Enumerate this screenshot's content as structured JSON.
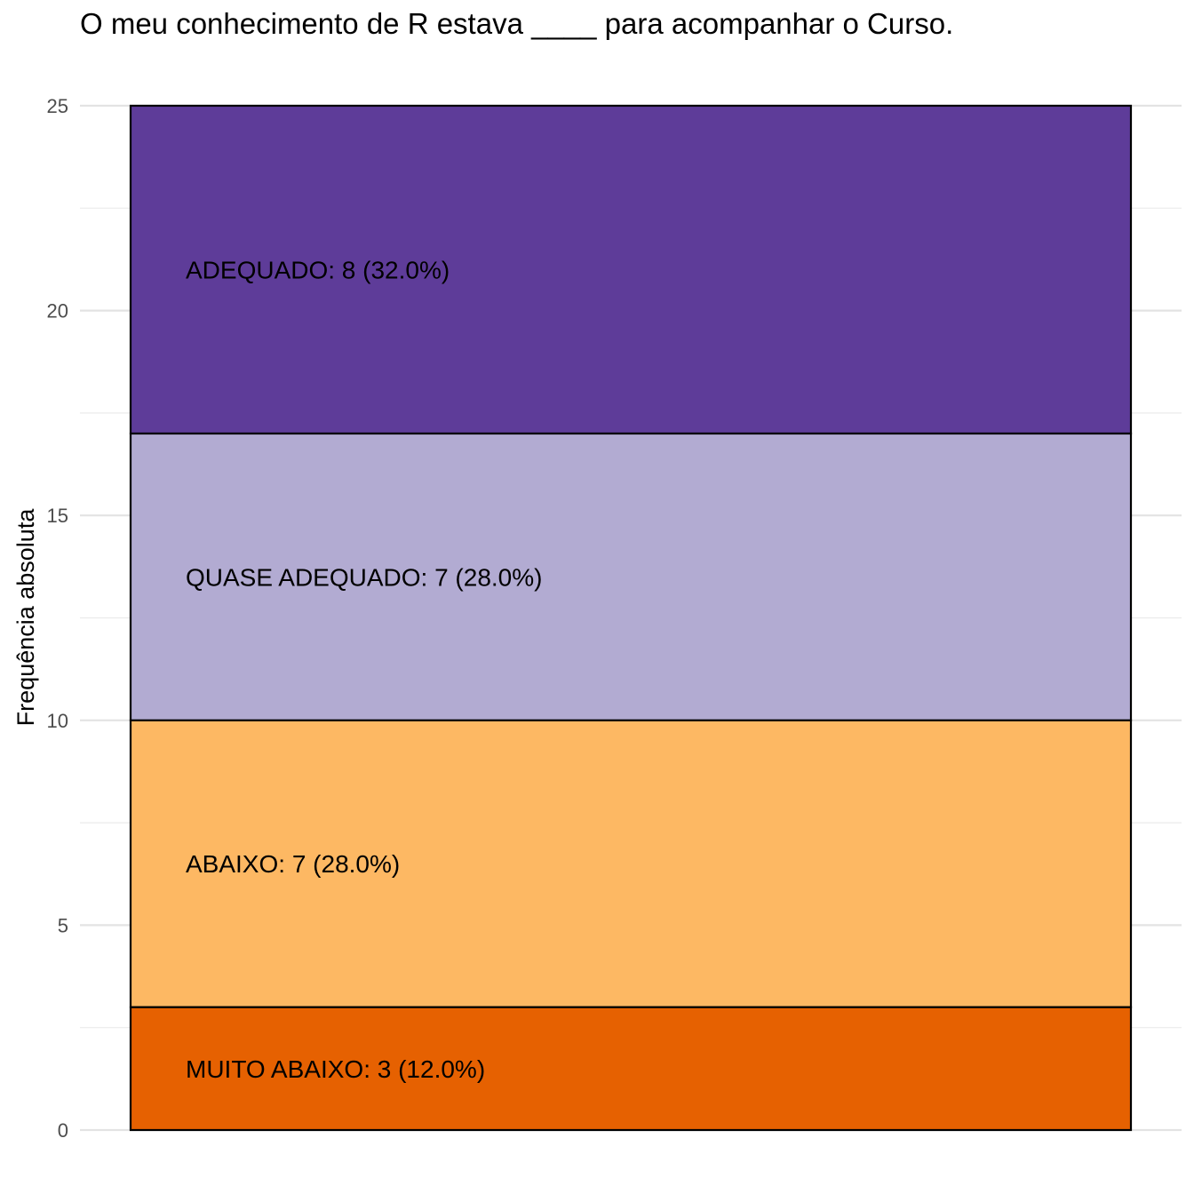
{
  "chart_data": {
    "type": "bar",
    "stacked": true,
    "title": "O meu conhecimento de R estava ____ para acompanhar o Curso.",
    "xlabel": "",
    "ylabel": "Frequência absoluta",
    "ylim": [
      0,
      25
    ],
    "yticks": [
      "0",
      "5",
      "10",
      "15",
      "20",
      "25"
    ],
    "grid": true,
    "segments": [
      {
        "category": "MUITO ABAIXO",
        "value": 3,
        "percent": "12.0%",
        "label": "MUITO ABAIXO: 3 (12.0%)",
        "color": "#e66101"
      },
      {
        "category": "ABAIXO",
        "value": 7,
        "percent": "28.0%",
        "label": "ABAIXO: 7 (28.0%)",
        "color": "#fdb863"
      },
      {
        "category": "QUASE ADEQUADO",
        "value": 7,
        "percent": "28.0%",
        "label": "QUASE ADEQUADO: 7 (28.0%)",
        "color": "#b2abd2"
      },
      {
        "category": "ADEQUADO",
        "value": 8,
        "percent": "32.0%",
        "label": "ADEQUADO: 8 (32.0%)",
        "color": "#5e3c99"
      }
    ]
  }
}
